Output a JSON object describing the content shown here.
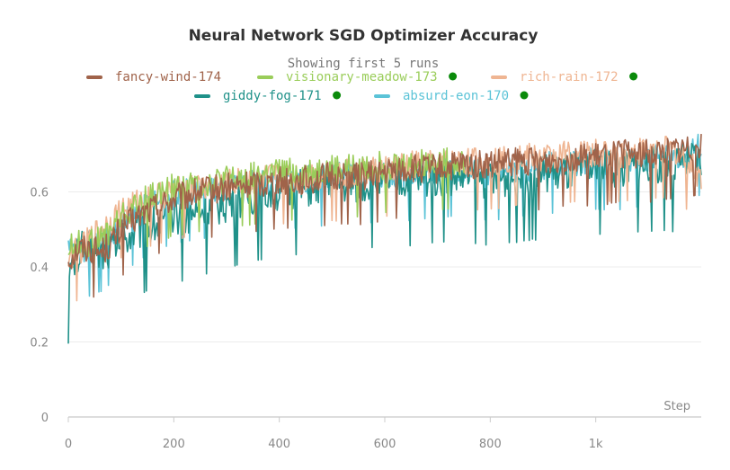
{
  "chart_data": {
    "type": "line",
    "title": "Neural Network SGD Optimizer Accuracy",
    "subtitle": "Showing first 5 runs",
    "xlabel": "Step",
    "ylabel": "",
    "xlim": [
      0,
      1200
    ],
    "ylim": [
      0,
      0.8
    ],
    "x_ticks": [
      0,
      200,
      400,
      600,
      800,
      1000
    ],
    "x_tick_labels": [
      "0",
      "200",
      "400",
      "600",
      "800",
      "1k"
    ],
    "y_ticks": [
      0,
      0.2,
      0.4,
      0.6
    ],
    "y_tick_labels": [
      "0",
      "0.2",
      "0.4",
      "0.6"
    ],
    "grid": true,
    "legend_position": "top",
    "series": [
      {
        "name": "fancy-wind-174",
        "color": "#a0634a",
        "has_dot": false,
        "x": [
          0,
          20,
          40,
          60,
          80,
          100,
          150,
          200,
          250,
          300,
          350,
          400,
          450,
          500,
          550,
          600,
          650,
          700,
          750,
          800,
          850,
          900,
          950,
          1000,
          1050,
          1100,
          1150,
          1200
        ],
        "y": [
          0.42,
          0.45,
          0.45,
          0.44,
          0.46,
          0.5,
          0.55,
          0.58,
          0.6,
          0.61,
          0.62,
          0.63,
          0.63,
          0.64,
          0.64,
          0.65,
          0.66,
          0.66,
          0.67,
          0.67,
          0.68,
          0.68,
          0.69,
          0.69,
          0.7,
          0.7,
          0.71,
          0.72
        ]
      },
      {
        "name": "visionary-meadow-173",
        "color": "#9acd5a",
        "has_dot": true,
        "x": [
          0,
          20,
          40,
          60,
          80,
          100,
          150,
          200,
          250,
          300,
          350,
          400,
          450,
          500,
          550,
          600,
          650,
          700,
          750
        ],
        "y": [
          0.45,
          0.46,
          0.46,
          0.47,
          0.5,
          0.53,
          0.58,
          0.61,
          0.62,
          0.63,
          0.64,
          0.65,
          0.65,
          0.66,
          0.66,
          0.67,
          0.67,
          0.68,
          0.68
        ]
      },
      {
        "name": "rich-rain-172",
        "color": "#efb592",
        "has_dot": true,
        "x": [
          0,
          20,
          40,
          60,
          80,
          100,
          150,
          200,
          250,
          300,
          350,
          400,
          450,
          500,
          550,
          600,
          650,
          700,
          750,
          800,
          850,
          900,
          950,
          1000,
          1050,
          1100,
          1150,
          1200
        ],
        "y": [
          0.43,
          0.44,
          0.47,
          0.5,
          0.52,
          0.55,
          0.58,
          0.6,
          0.61,
          0.62,
          0.63,
          0.64,
          0.64,
          0.65,
          0.65,
          0.66,
          0.67,
          0.67,
          0.68,
          0.68,
          0.69,
          0.69,
          0.7,
          0.7,
          0.7,
          0.71,
          0.71,
          0.64
        ]
      },
      {
        "name": "giddy-fog-171",
        "color": "#1f9189",
        "has_dot": true,
        "x": [
          0,
          20,
          40,
          60,
          80,
          100,
          150,
          200,
          250,
          300,
          350,
          400,
          450,
          500,
          550,
          600,
          650,
          700,
          750,
          800,
          850,
          900,
          950,
          1000,
          1050,
          1100,
          1150,
          1200
        ],
        "y": [
          0.37,
          0.44,
          0.45,
          0.44,
          0.45,
          0.48,
          0.51,
          0.53,
          0.55,
          0.57,
          0.59,
          0.6,
          0.61,
          0.62,
          0.62,
          0.63,
          0.63,
          0.64,
          0.64,
          0.63,
          0.64,
          0.65,
          0.65,
          0.66,
          0.66,
          0.67,
          0.67,
          0.68
        ]
      },
      {
        "name": "absurd-eon-170",
        "color": "#5bc3d7",
        "has_dot": true,
        "x": [
          0,
          20,
          40,
          60,
          80,
          100,
          150,
          200,
          250,
          300,
          350,
          400,
          450,
          500,
          550,
          600,
          650,
          700,
          750,
          800,
          850,
          900,
          950,
          1000,
          1050,
          1100,
          1150,
          1200
        ],
        "y": [
          0.44,
          0.45,
          0.45,
          0.46,
          0.48,
          0.51,
          0.56,
          0.59,
          0.6,
          0.61,
          0.62,
          0.63,
          0.63,
          0.64,
          0.64,
          0.65,
          0.65,
          0.66,
          0.66,
          0.65,
          0.66,
          0.67,
          0.67,
          0.68,
          0.68,
          0.69,
          0.69,
          0.72
        ]
      }
    ]
  }
}
